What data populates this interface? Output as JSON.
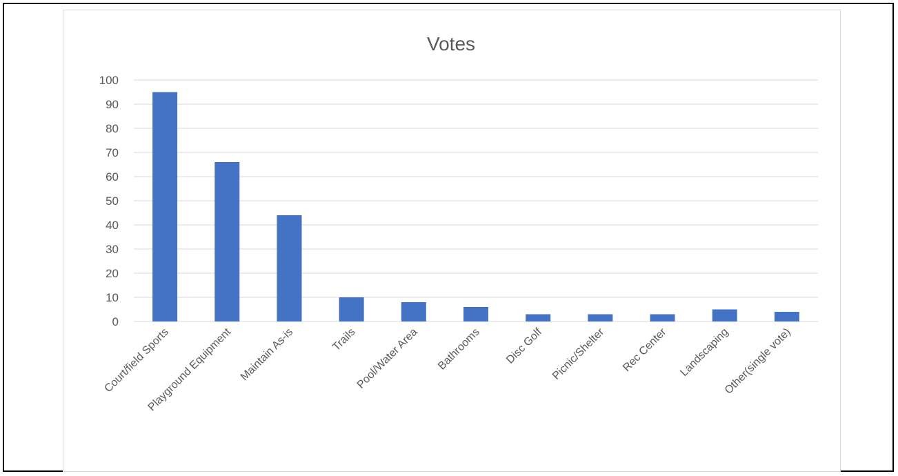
{
  "chart_data": {
    "type": "bar",
    "title": "Votes",
    "xlabel": "",
    "ylabel": "",
    "categories": [
      "Court/field Sports",
      "Playground Equipment",
      "Maintain As-is",
      "Trails",
      "Pool/Water Area",
      "Bathrooms",
      "Disc Golf",
      "Picnic/Shelter",
      "Rec Center",
      "Landscaping",
      "Other(single vote)"
    ],
    "values": [
      95,
      66,
      44,
      10,
      8,
      6,
      3,
      3,
      3,
      5,
      4
    ],
    "ylim": [
      0,
      100
    ],
    "yticks": [
      0,
      10,
      20,
      30,
      40,
      50,
      60,
      70,
      80,
      90,
      100
    ],
    "grid": true,
    "legend": "none",
    "bar_color": "#4472c4",
    "gridline_color": "#d9d9d9",
    "text_color": "#595959"
  }
}
